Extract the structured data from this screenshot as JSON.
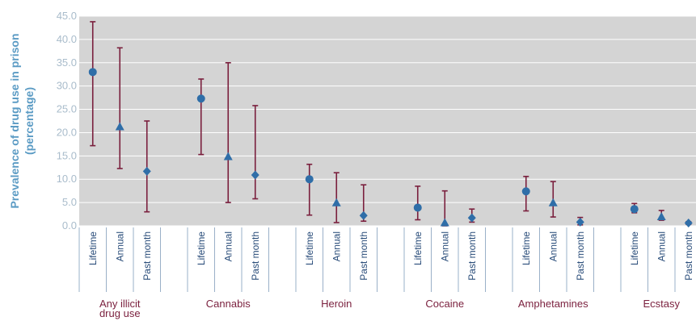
{
  "chart_data": {
    "type": "scatter",
    "ylabel_line1": "Prevalence of drug use in prison",
    "ylabel_line2": "(percentage)",
    "ylim": [
      0,
      45
    ],
    "yticks": [
      "0.0",
      "5.0",
      "10.0",
      "15.0",
      "20.0",
      "25.0",
      "30.0",
      "35.0",
      "40.0",
      "45.0"
    ],
    "grid": true,
    "subcategories": [
      "Lifetime",
      "Annual",
      "Past month"
    ],
    "groups": [
      {
        "label_lines": [
          "Any illicit",
          "drug use"
        ],
        "points": [
          {
            "sub": "Lifetime",
            "value": 33.0,
            "low": 17.2,
            "high": 43.8
          },
          {
            "sub": "Annual",
            "value": 21.2,
            "low": 12.3,
            "high": 38.2
          },
          {
            "sub": "Past month",
            "value": 11.7,
            "low": 3.0,
            "high": 22.5
          }
        ]
      },
      {
        "label_lines": [
          "Cannabis"
        ],
        "points": [
          {
            "sub": "Lifetime",
            "value": 27.3,
            "low": 15.3,
            "high": 31.5
          },
          {
            "sub": "Annual",
            "value": 14.8,
            "low": 5.0,
            "high": 35.0
          },
          {
            "sub": "Past month",
            "value": 10.9,
            "low": 5.8,
            "high": 25.8
          }
        ]
      },
      {
        "label_lines": [
          "Heroin"
        ],
        "points": [
          {
            "sub": "Lifetime",
            "value": 10.0,
            "low": 2.3,
            "high": 13.2
          },
          {
            "sub": "Annual",
            "value": 4.9,
            "low": 0.7,
            "high": 11.4
          },
          {
            "sub": "Past month",
            "value": 2.2,
            "low": 1.0,
            "high": 8.8
          }
        ]
      },
      {
        "label_lines": [
          "Cocaine"
        ],
        "points": [
          {
            "sub": "Lifetime",
            "value": 3.9,
            "low": 1.3,
            "high": 8.5
          },
          {
            "sub": "Annual",
            "value": 0.6,
            "low": 0.0,
            "high": 7.5
          },
          {
            "sub": "Past month",
            "value": 1.7,
            "low": 0.8,
            "high": 3.6
          }
        ]
      },
      {
        "label_lines": [
          "Amphetamines"
        ],
        "points": [
          {
            "sub": "Lifetime",
            "value": 7.4,
            "low": 3.2,
            "high": 10.6
          },
          {
            "sub": "Annual",
            "value": 4.9,
            "low": 1.9,
            "high": 9.5
          },
          {
            "sub": "Past month",
            "value": 0.8,
            "low": 0.2,
            "high": 1.8
          }
        ]
      },
      {
        "label_lines": [
          "Ecstasy"
        ],
        "points": [
          {
            "sub": "Lifetime",
            "value": 3.6,
            "low": 2.8,
            "high": 4.8
          },
          {
            "sub": "Annual",
            "value": 1.9,
            "low": 1.2,
            "high": 3.3
          },
          {
            "sub": "Past month",
            "value": 0.6,
            "low": 0.3,
            "high": 0.9
          }
        ]
      }
    ],
    "colors": {
      "plot_bg": "#d4d4d4",
      "grid": "#ffffff",
      "error_bar": "#7a1f3d",
      "marker": "#2f6ea8",
      "tick": "#a9bccb",
      "axis_label": "#5b9bc4",
      "sub_label": "#2a4d7a",
      "group_label": "#7a1f3d",
      "separator": "#9ab0c8"
    },
    "markers": {
      "Lifetime": "circle",
      "Annual": "triangle",
      "Past month": "diamond"
    }
  }
}
